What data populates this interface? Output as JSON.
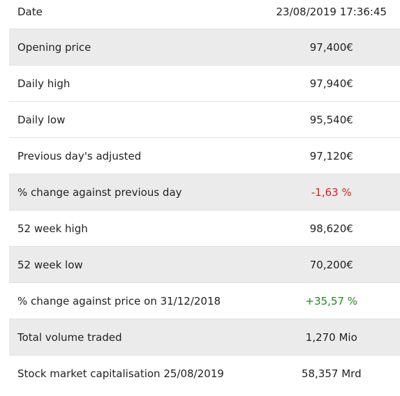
{
  "table": {
    "rows": [
      [
        "Date",
        "23/08/2019 17:36:45"
      ],
      [
        "Opening price",
        "97,400€"
      ],
      [
        "Daily high",
        "97,940€"
      ],
      [
        "Daily low",
        "95,540€"
      ],
      [
        "Previous day's adjusted",
        "97,120€"
      ],
      [
        "% change against previous day",
        "-1,63 %"
      ],
      [
        "52 week high",
        "98,620€"
      ],
      [
        "52 week low",
        "70,200€"
      ],
      [
        "% change against price on 31/12/2018",
        "+35,57 %"
      ],
      [
        "Total volume traded",
        "1,270 Mio"
      ],
      [
        "Stock market capitalisation 25/08/2019",
        "58,357 Mrd"
      ]
    ]
  }
}
